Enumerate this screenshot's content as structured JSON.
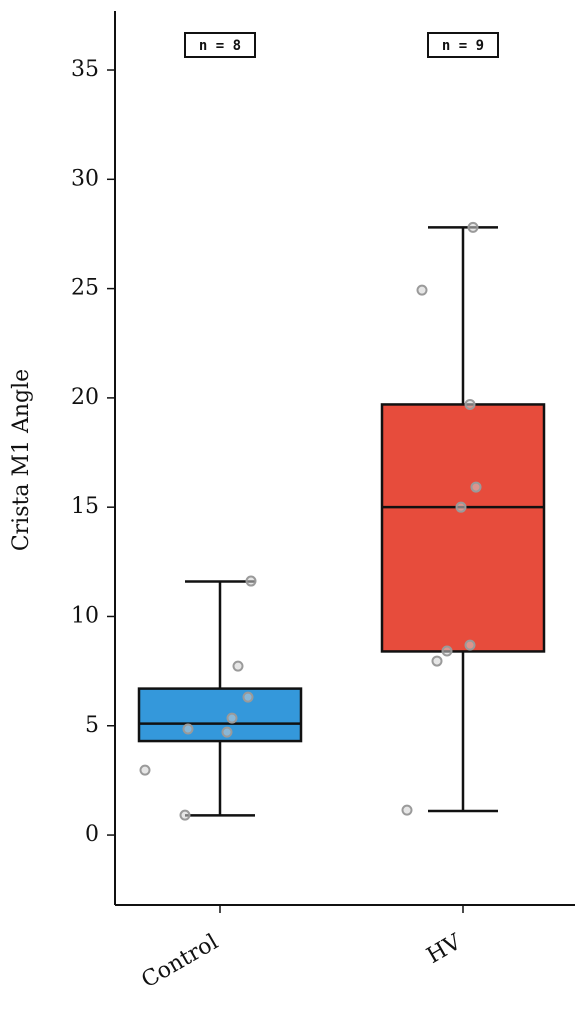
{
  "chart_data": {
    "type": "box",
    "y_label": "Crista M1 Angle",
    "categories": [
      "Control",
      "HV"
    ],
    "ylim": [
      -3.2,
      37.7
    ],
    "yticks": [
      0,
      5,
      10,
      15,
      20,
      25,
      30,
      35
    ],
    "boxes": [
      {
        "color": "#3498db",
        "whisker_low": 0.9,
        "q1": 4.3,
        "median": 5.1,
        "q3": 6.7,
        "whisker_high": 11.6,
        "points": [
          2.97,
          0.91,
          4.85,
          4.71,
          5.35,
          7.73,
          6.31,
          11.62
        ],
        "annotation": "n = 8"
      },
      {
        "color": "#e74c3c",
        "whisker_low": 1.1,
        "q1": 8.4,
        "median": 15.0,
        "q3": 19.7,
        "whisker_high": 27.8,
        "points": [
          1.14,
          7.96,
          8.42,
          8.69,
          15.0,
          15.92,
          19.7,
          24.93,
          27.8
        ],
        "annotation": "n = 9"
      }
    ]
  }
}
